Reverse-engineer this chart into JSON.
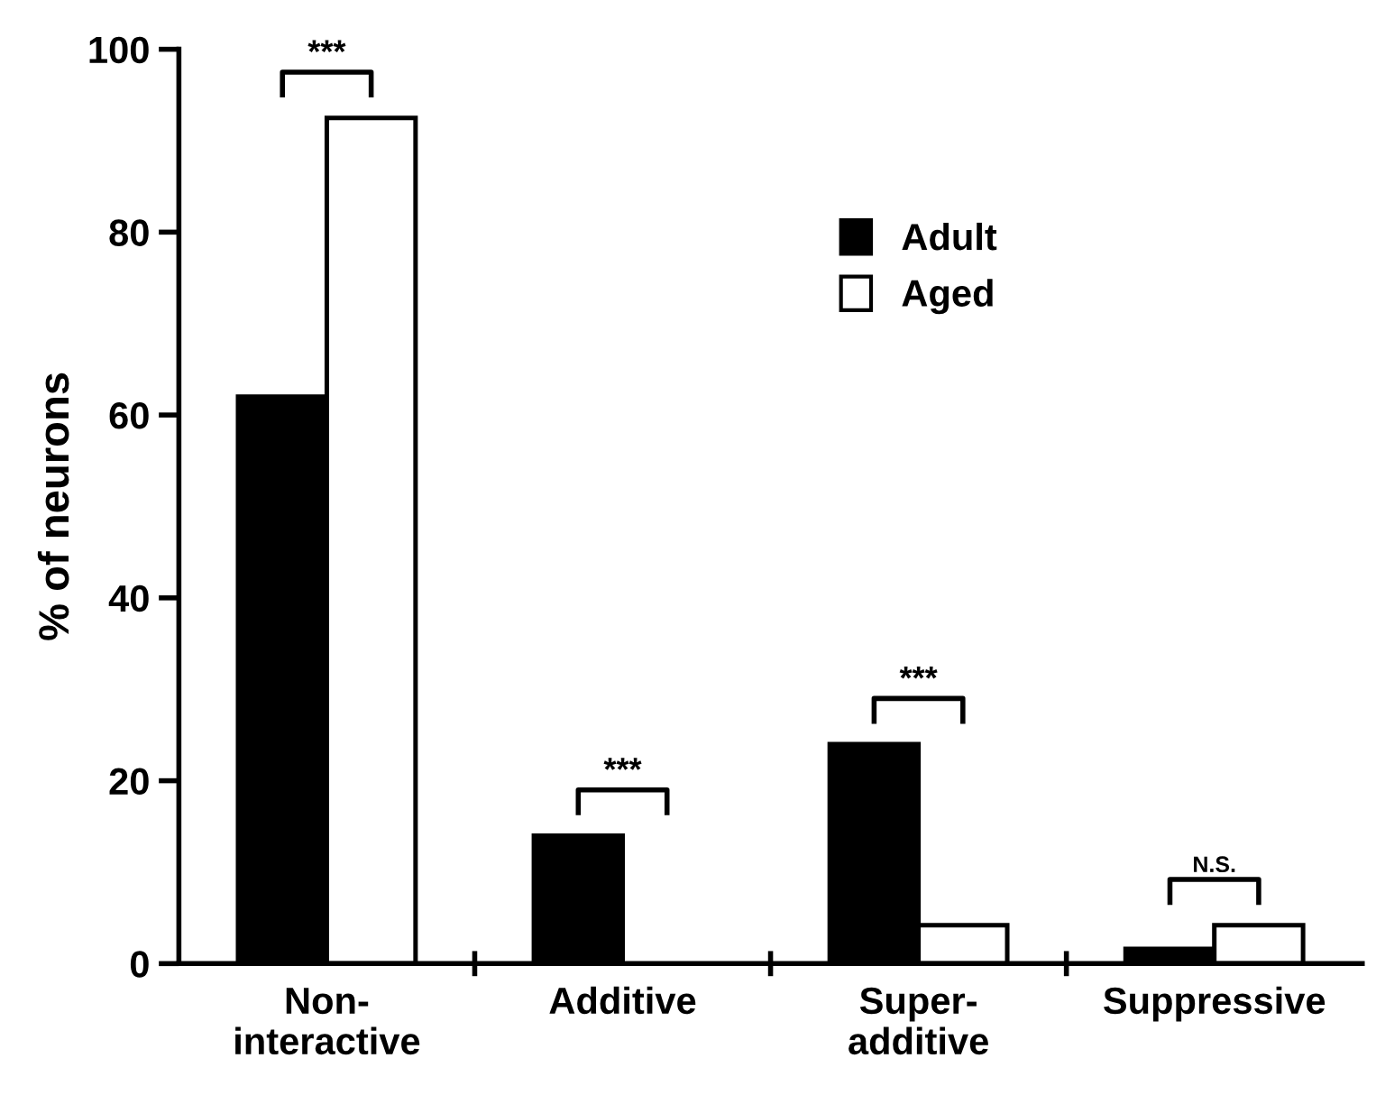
{
  "chart_data": {
    "type": "bar",
    "ylabel": "% of neurons",
    "categories": [
      "Non-\ninteractive",
      "Additive",
      "Super-\nadditive",
      "Suppressive"
    ],
    "series": [
      {
        "name": "Adult",
        "color": "#000000",
        "values": [
          62,
          14,
          24,
          1.6
        ]
      },
      {
        "name": "Aged",
        "color": "#ffffff",
        "values": [
          92.5,
          null,
          4.2,
          4.2
        ]
      }
    ],
    "ylim": [
      0,
      100
    ],
    "yticks": [
      0,
      20,
      40,
      60,
      80,
      100
    ],
    "grid": false,
    "legend": "top right",
    "annotations": [
      "***",
      "***",
      "***",
      "N.S."
    ]
  }
}
